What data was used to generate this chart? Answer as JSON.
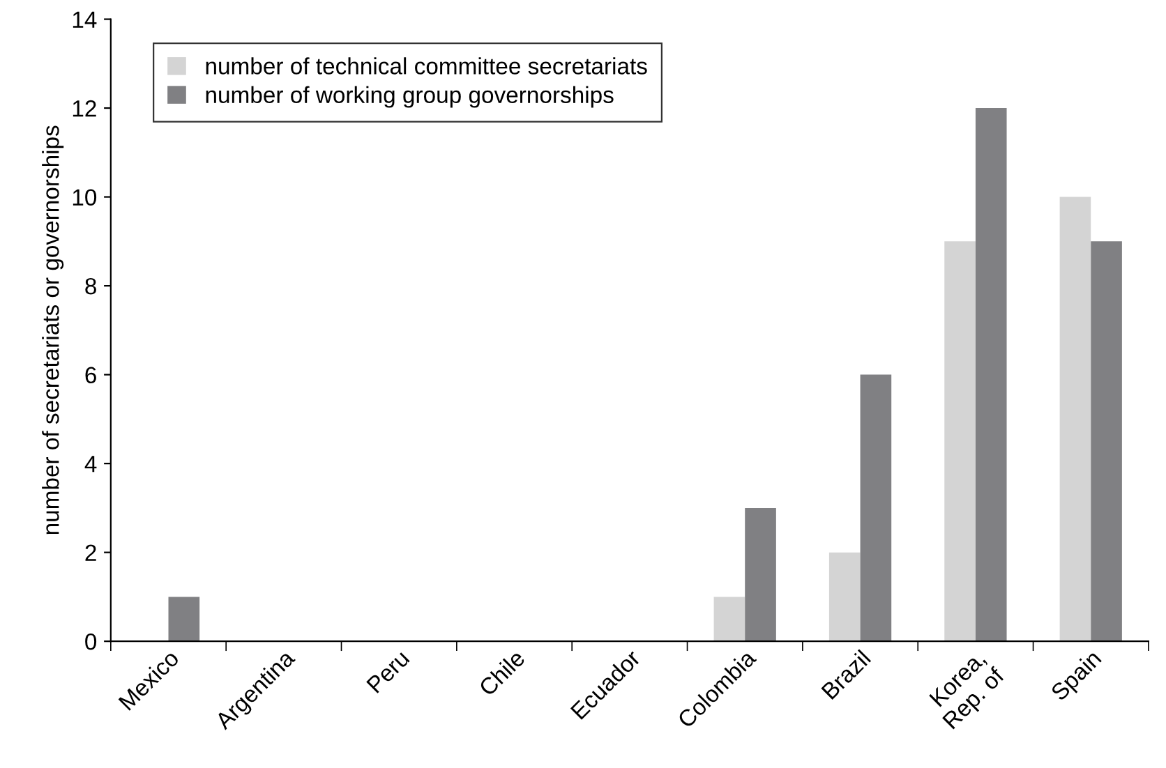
{
  "chart_data": {
    "type": "bar",
    "ylabel": "number of secretariats or governorships",
    "categories": [
      "Mexico",
      "Argentina",
      "Peru",
      "Chile",
      "Ecuador",
      "Colombia",
      "Brazil",
      "Korea,\nRep. of",
      "Spain"
    ],
    "series": [
      {
        "name": "number of technical committee secretariats",
        "color": "#d4d4d4",
        "values": [
          0,
          0,
          0,
          0,
          0,
          1,
          2,
          9,
          10
        ]
      },
      {
        "name": "number of working group governorships",
        "color": "#808083",
        "values": [
          1,
          0,
          0,
          0,
          0,
          3,
          6,
          12,
          9
        ]
      }
    ],
    "ylim": [
      0,
      14
    ],
    "yticks": [
      0,
      2,
      4,
      6,
      8,
      10,
      12,
      14
    ],
    "grid": false,
    "legend": "top left"
  }
}
